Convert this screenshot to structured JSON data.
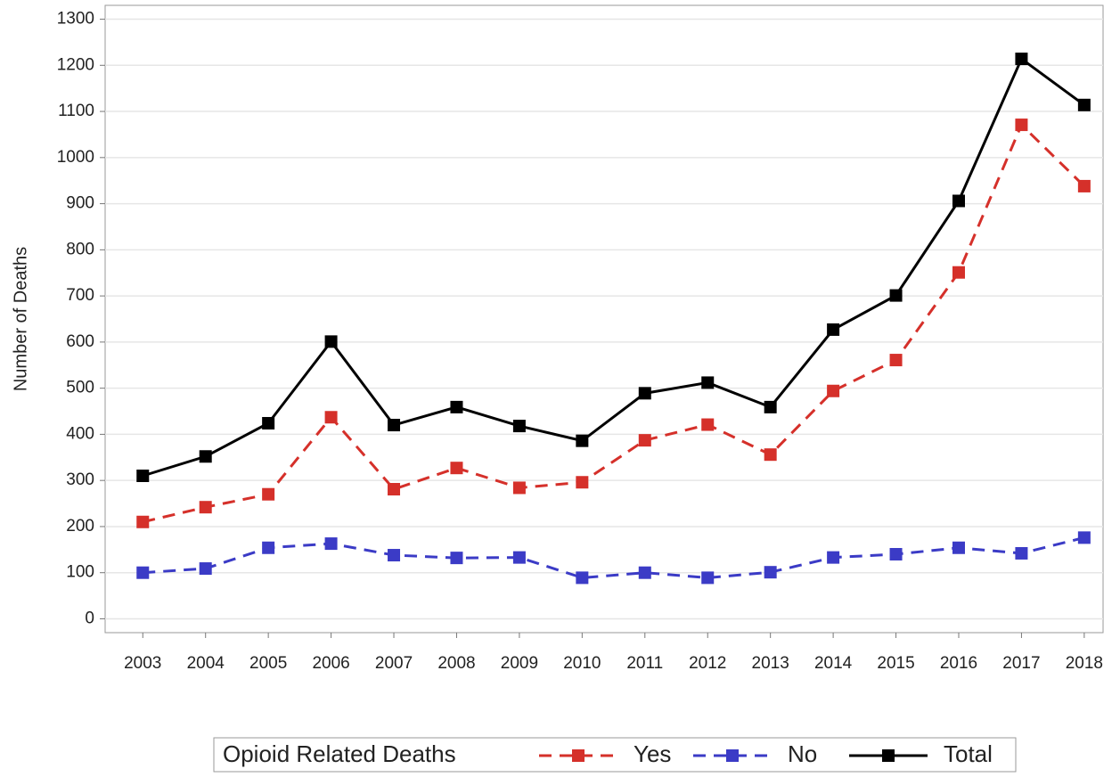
{
  "chart_data": {
    "type": "line",
    "y_label": "Number of Deaths",
    "legend_title": "Opioid Related Deaths",
    "x": [
      2003,
      2004,
      2005,
      2006,
      2007,
      2008,
      2009,
      2010,
      2011,
      2012,
      2013,
      2014,
      2015,
      2016,
      2017,
      2018
    ],
    "xlim": [
      2002.4,
      2018.3
    ],
    "xticks": [
      2003,
      2004,
      2005,
      2006,
      2007,
      2008,
      2009,
      2010,
      2011,
      2012,
      2013,
      2014,
      2015,
      2016,
      2017,
      2018
    ],
    "ylim": [
      -30,
      1330
    ],
    "yticks": [
      0,
      100,
      200,
      300,
      400,
      500,
      600,
      700,
      800,
      900,
      1000,
      1100,
      1200,
      1300
    ],
    "grid": true,
    "legend_position": "bottom",
    "series": [
      {
        "name": "Yes",
        "color": "#d5302a",
        "dashed": true,
        "values": [
          210,
          242,
          270,
          437,
          281,
          327,
          284,
          296,
          387,
          421,
          356,
          494,
          561,
          751,
          1071,
          938
        ]
      },
      {
        "name": "No",
        "color": "#3b3bc6",
        "dashed": true,
        "values": [
          100,
          109,
          154,
          163,
          138,
          132,
          133,
          89,
          100,
          89,
          101,
          133,
          140,
          154,
          142,
          176
        ]
      },
      {
        "name": "Total",
        "color": "#000000",
        "dashed": false,
        "values": [
          310,
          352,
          424,
          601,
          420,
          459,
          418,
          386,
          489,
          512,
          459,
          627,
          701,
          906,
          1214,
          1114
        ]
      }
    ]
  }
}
